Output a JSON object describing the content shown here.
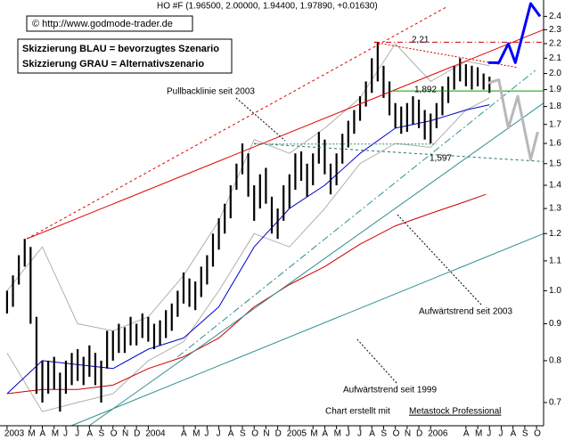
{
  "chart_data": {
    "type": "ohlc",
    "title": "HO #F (1.96500, 2.00000, 1.94400, 1.97890, +0.01630)",
    "yscale": "log",
    "ylim": [
      0.65,
      2.5
    ],
    "yticks": [
      0.7,
      0.8,
      0.9,
      {
        "value": 1,
        "label": "1.0"
      },
      1.1,
      1.2,
      1.3,
      1.4,
      1.5,
      1.6,
      1.7,
      1.8,
      1.9,
      {
        "value": 2,
        "label": "2.0"
      },
      2.1,
      2.2,
      2.3,
      2.4
    ],
    "xlim": [
      -0.6,
      45.6
    ],
    "xticks": [
      {
        "value": 0,
        "label": "2003"
      },
      {
        "value": 2,
        "label": "M"
      },
      {
        "value": 3,
        "label": "A"
      },
      {
        "value": 4,
        "label": "M"
      },
      {
        "value": 5,
        "label": "J"
      },
      {
        "value": 6,
        "label": "J"
      },
      {
        "value": 7,
        "label": "A"
      },
      {
        "value": 8,
        "label": "S"
      },
      {
        "value": 9,
        "label": "O"
      },
      {
        "value": 10,
        "label": "N"
      },
      {
        "value": 11,
        "label": "D"
      },
      {
        "value": 12,
        "label": "2004"
      },
      {
        "value": 15,
        "label": "A"
      },
      {
        "value": 16,
        "label": "M"
      },
      {
        "value": 17,
        "label": "J"
      },
      {
        "value": 18,
        "label": "J"
      },
      {
        "value": 19,
        "label": "A"
      },
      {
        "value": 20,
        "label": "S"
      },
      {
        "value": 21,
        "label": "O"
      },
      {
        "value": 22,
        "label": "N"
      },
      {
        "value": 23,
        "label": "D"
      },
      {
        "value": 24,
        "label": "2005"
      },
      {
        "value": 26,
        "label": "M"
      },
      {
        "value": 27,
        "label": "A"
      },
      {
        "value": 28,
        "label": "M"
      },
      {
        "value": 29,
        "label": "J"
      },
      {
        "value": 30,
        "label": "J"
      },
      {
        "value": 31,
        "label": "A"
      },
      {
        "value": 32,
        "label": "S"
      },
      {
        "value": 33,
        "label": "O"
      },
      {
        "value": 34,
        "label": "N"
      },
      {
        "value": 35,
        "label": "D"
      },
      {
        "value": 36,
        "label": "2006"
      },
      {
        "value": 39,
        "label": "A"
      },
      {
        "value": 40,
        "label": "M"
      },
      {
        "value": 41,
        "label": "J"
      },
      {
        "value": 42,
        "label": "J"
      },
      {
        "value": 43,
        "label": "A"
      },
      {
        "value": 44,
        "label": "S"
      },
      {
        "value": 45,
        "label": "O"
      }
    ],
    "price": {
      "color": "#000000",
      "x": [
        0,
        0.5,
        1,
        1.5,
        2,
        2.5,
        3,
        3.5,
        4,
        4.5,
        5,
        5.5,
        6,
        6.5,
        7,
        7.5,
        8,
        8.5,
        9,
        9.5,
        10,
        10.5,
        11,
        11.5,
        12,
        12.5,
        13,
        13.5,
        14,
        14.5,
        15,
        15.5,
        16,
        16.5,
        17,
        17.5,
        18,
        18.5,
        19,
        19.5,
        20,
        20.5,
        21,
        21.5,
        22,
        22.5,
        23,
        23.5,
        24,
        24.5,
        25,
        25.5,
        26,
        26.5,
        27,
        27.5,
        28,
        28.5,
        29,
        29.5,
        30,
        30.5,
        31,
        31.5,
        32,
        32.5,
        33,
        33.5,
        34,
        34.5,
        35,
        35.5,
        36,
        36.5,
        37,
        37.5,
        38,
        38.5,
        39,
        39.5,
        40,
        40.5,
        41
      ],
      "low": [
        0.93,
        0.95,
        1.02,
        1.08,
        0.9,
        0.72,
        0.7,
        0.72,
        0.73,
        0.68,
        0.72,
        0.74,
        0.75,
        0.74,
        0.76,
        0.74,
        0.7,
        0.78,
        0.8,
        0.82,
        0.82,
        0.84,
        0.84,
        0.86,
        0.85,
        0.83,
        0.84,
        0.86,
        0.88,
        0.92,
        0.96,
        0.95,
        0.94,
        0.98,
        1.02,
        1.08,
        1.14,
        1.2,
        1.26,
        1.38,
        1.45,
        1.35,
        1.25,
        1.3,
        1.32,
        1.2,
        1.18,
        1.25,
        1.3,
        1.38,
        1.42,
        1.35,
        1.4,
        1.5,
        1.45,
        1.36,
        1.4,
        1.5,
        1.58,
        1.65,
        1.72,
        1.8,
        1.88,
        1.95,
        1.85,
        1.75,
        1.68,
        1.65,
        1.66,
        1.7,
        1.68,
        1.62,
        1.6,
        1.68,
        1.75,
        1.82,
        1.9,
        1.95,
        1.92,
        1.9,
        1.92,
        1.9,
        1.88
      ],
      "high": [
        1.0,
        1.05,
        1.12,
        1.18,
        1.15,
        0.92,
        0.8,
        0.8,
        0.81,
        0.77,
        0.8,
        0.82,
        0.83,
        0.81,
        0.84,
        0.82,
        0.8,
        0.88,
        0.88,
        0.9,
        0.89,
        0.92,
        0.9,
        0.93,
        0.92,
        0.9,
        0.91,
        0.94,
        0.96,
        1.0,
        1.06,
        1.04,
        1.03,
        1.08,
        1.12,
        1.2,
        1.26,
        1.32,
        1.4,
        1.5,
        1.6,
        1.55,
        1.4,
        1.45,
        1.48,
        1.35,
        1.3,
        1.4,
        1.45,
        1.55,
        1.56,
        1.5,
        1.55,
        1.66,
        1.62,
        1.5,
        1.55,
        1.65,
        1.72,
        1.78,
        1.86,
        1.95,
        2.1,
        2.21,
        2.05,
        1.95,
        1.82,
        1.8,
        1.82,
        1.86,
        1.84,
        1.78,
        1.76,
        1.82,
        1.92,
        1.98,
        2.05,
        2.1,
        2.06,
        2.05,
        2.04,
        2.0,
        1.98
      ]
    },
    "overlays": [
      {
        "color": "#b0b0b0",
        "width": 1,
        "dash": "none",
        "x": [
          0,
          3,
          6,
          9,
          12,
          15,
          18,
          21,
          24,
          27,
          30,
          33,
          36,
          39,
          41
        ],
        "values": [
          1.0,
          1.15,
          0.9,
          0.88,
          0.92,
          1.05,
          1.25,
          1.62,
          1.55,
          1.68,
          1.85,
          2.2,
          1.95,
          2.08,
          2.05
        ]
      },
      {
        "color": "#b0b0b0",
        "width": 1,
        "dash": "none",
        "x": [
          0,
          3,
          6,
          9,
          12,
          15,
          18,
          21,
          24,
          27,
          30,
          33,
          36,
          39,
          41
        ],
        "values": [
          0.82,
          0.68,
          0.7,
          0.72,
          0.8,
          0.85,
          1.0,
          1.2,
          1.15,
          1.3,
          1.5,
          1.6,
          1.58,
          1.78,
          1.85
        ]
      },
      {
        "color": "#0000cc",
        "width": 1,
        "dash": "none",
        "x": [
          0,
          3,
          6,
          9,
          12,
          15,
          18,
          21,
          24,
          27,
          30,
          33,
          36,
          39,
          41
        ],
        "values": [
          0.72,
          0.8,
          0.79,
          0.78,
          0.83,
          0.86,
          0.95,
          1.15,
          1.3,
          1.4,
          1.55,
          1.68,
          1.72,
          1.78,
          1.81
        ]
      },
      {
        "color": "#cc0000",
        "width": 1,
        "dash": "none",
        "x": [
          0,
          3,
          6,
          9,
          12,
          15,
          18,
          21,
          24,
          27,
          30,
          33,
          36,
          39,
          40.7
        ],
        "values": [
          0.72,
          0.73,
          0.73,
          0.74,
          0.78,
          0.81,
          0.86,
          0.95,
          1.02,
          1.08,
          1.16,
          1.23,
          1.28,
          1.33,
          1.36
        ]
      },
      {
        "color": "#e00000",
        "width": 1,
        "dash": "none",
        "x": [
          1.67,
          45.6
        ],
        "values": [
          1.18,
          2.3
        ]
      },
      {
        "color": "#e00000",
        "width": 1,
        "dash": "3,3",
        "x": [
          1.67,
          37.3
        ],
        "values": [
          1.18,
          2.47
        ]
      },
      {
        "color": "#cc0000",
        "width": 1,
        "dash": "6,3,1,3",
        "x": [
          31.2,
          45.6
        ],
        "values": [
          2.21,
          2.21
        ]
      },
      {
        "color": "#cc0000",
        "width": 1,
        "dash": "2,2",
        "x": [
          31.2,
          43.3
        ],
        "values": [
          2.21,
          2.04
        ]
      },
      {
        "color": "#2f8f8f",
        "width": 1,
        "dash": "none",
        "x": [
          5.45,
          45.6
        ],
        "values": [
          0.65,
          1.2
        ]
      },
      {
        "color": "#2f8f8f",
        "width": 1,
        "dash": "none",
        "x": [
          6.97,
          45.6
        ],
        "values": [
          0.65,
          1.82
        ]
      },
      {
        "color": "#2f8f8f",
        "width": 1,
        "dash": "8,3,2,3",
        "x": [
          14.5,
          44.9
        ],
        "values": [
          0.81,
          2.02
        ]
      },
      {
        "color": "#2f6f6f",
        "width": 1,
        "dash": "3,3",
        "x": [
          21,
          45.6
        ],
        "values": [
          1.6,
          1.51
        ]
      },
      {
        "color": "#2f8f5f",
        "width": 1,
        "dash": "2,2",
        "x": [
          21,
          36.5
        ],
        "values": [
          1.597,
          1.597
        ]
      },
      {
        "color": "#00a000",
        "width": 1,
        "dash": "none",
        "x": [
          32.7,
          45.6
        ],
        "values": [
          1.892,
          1.892
        ]
      },
      {
        "color": "#0000ff",
        "width": 3,
        "dash": "none",
        "x": [
          40.9,
          41.8,
          42.6,
          43.2,
          44.5,
          45.3
        ],
        "values": [
          2.07,
          2.07,
          2.2,
          2.07,
          2.5,
          2.4
        ]
      },
      {
        "color": "#b8b8b8",
        "width": 3,
        "dash": "none",
        "x": [
          40.9,
          41.8,
          42.6,
          43.4,
          44.5,
          45.1
        ],
        "values": [
          1.94,
          1.96,
          1.68,
          1.86,
          1.52,
          1.66
        ]
      }
    ],
    "annotations": {
      "copyright": "© http://www.godmode-trader.de",
      "legend_blue": "Skizzierung BLAU = bevorzugtes Szenario",
      "legend_gray": "Skizzierung GRAU = Alternativszenario",
      "pullback": "Pullbacklinie seit 2003",
      "level_high": "2,21",
      "level_mid": "1,892",
      "level_low": "1,597",
      "trend_2003": "Aufwärtstrend seit 2003",
      "trend_1999": "Aufwärtstrend seit 1999",
      "credit": "Chart erstellt mit",
      "credit_link": "Metastock Professional"
    }
  }
}
